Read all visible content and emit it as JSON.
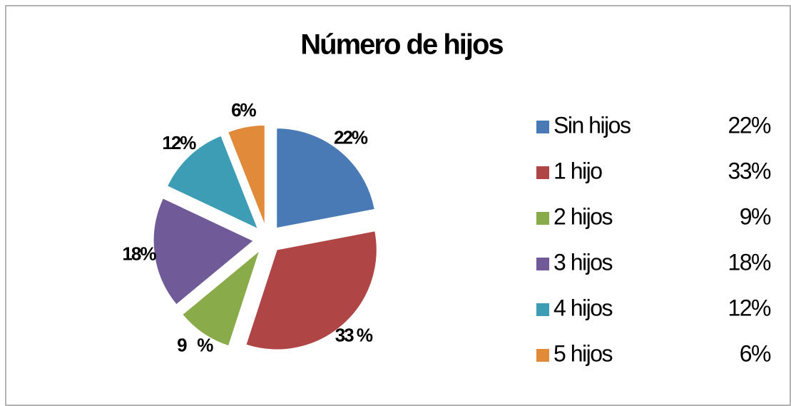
{
  "chart_data": {
    "type": "pie",
    "title": "Número de hijos",
    "categories": [
      "Sin hijos",
      "1 hijo",
      "2 hijos",
      "3 hijos",
      "4 hijos",
      "5 hijos"
    ],
    "values": [
      22,
      33,
      9,
      18,
      12,
      6
    ],
    "value_labels": [
      "22%",
      "33 %",
      "9   %",
      "18%",
      "12%",
      "6%"
    ],
    "legend_labels": [
      "22%",
      "33%",
      "9%",
      "18%",
      "12%",
      "6%"
    ],
    "colors": [
      "#4a7ab5",
      "#b04545",
      "#8aab4a",
      "#705a98",
      "#3d9db5",
      "#e08a3a"
    ],
    "legend": "right"
  }
}
